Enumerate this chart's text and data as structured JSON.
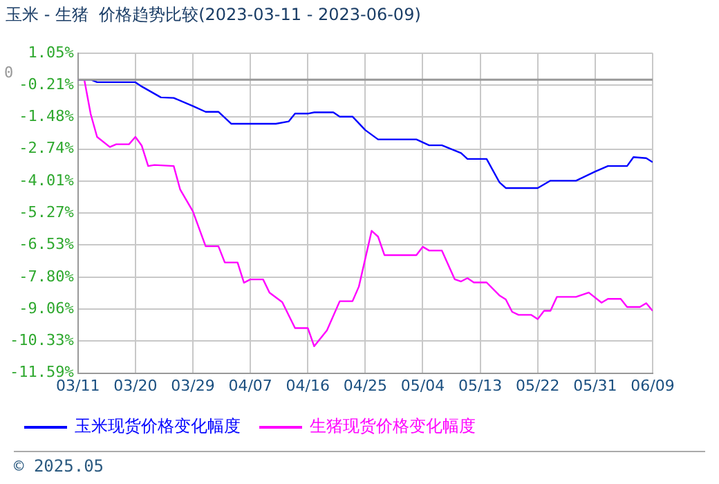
{
  "chart_data": {
    "type": "line",
    "title": "玉米 - 生猪  价格趋势比较(2023-03-11 - 2023-06-09)",
    "xlim": [
      "--03-11",
      "--06-09"
    ],
    "xticks": [
      {
        "value": "--03-11",
        "label": "03/11"
      },
      {
        "value": "--03-20",
        "label": "03/20"
      },
      {
        "value": "--03-29",
        "label": "03/29"
      },
      {
        "value": "--04-07",
        "label": "04/07"
      },
      {
        "value": "--04-16",
        "label": "04/16"
      },
      {
        "value": "--04-25",
        "label": "04/25"
      },
      {
        "value": "--05-04",
        "label": "05/04"
      },
      {
        "value": "--05-13",
        "label": "05/13"
      },
      {
        "value": "--05-22",
        "label": "05/22"
      },
      {
        "value": "--05-31",
        "label": "05/31"
      },
      {
        "value": "--06-09",
        "label": "06/09"
      }
    ],
    "ylim": [
      -11.59,
      1.05
    ],
    "yticks": [
      {
        "value": 1.05,
        "label": "1.05%"
      },
      {
        "value": -0.21,
        "label": "-0.21%"
      },
      {
        "value": -1.48,
        "label": "-1.48%"
      },
      {
        "value": -2.74,
        "label": "-2.74%"
      },
      {
        "value": -4.01,
        "label": "-4.01%"
      },
      {
        "value": -5.27,
        "label": "-5.27%"
      },
      {
        "value": -6.53,
        "label": "-6.53%"
      },
      {
        "value": -7.8,
        "label": "-7.80%"
      },
      {
        "value": -9.06,
        "label": "-9.06%"
      },
      {
        "value": -10.33,
        "label": "-10.33%"
      },
      {
        "value": -11.59,
        "label": "-11.59%"
      }
    ],
    "grid": true,
    "legend": "bottom",
    "marker": "none",
    "line_style": "solid",
    "ref_lines": [
      {
        "axis": "y",
        "value": 0,
        "label": "0",
        "color": "#999999"
      }
    ],
    "annotations": [
      "© 2025.05"
    ],
    "series": [
      {
        "name": "玉米现货价格变化幅度",
        "color": "#0000ff",
        "x": [
          "--03-11",
          "--03-13",
          "--03-14",
          "--03-20",
          "--03-21",
          "--03-24",
          "--03-26",
          "--03-29",
          "--03-31",
          "--04-02",
          "--04-04",
          "--04-11",
          "--04-13",
          "--04-14",
          "--04-16",
          "--04-17",
          "--04-20",
          "--04-21",
          "--04-23",
          "--04-25",
          "--04-27",
          "--05-03",
          "--05-05",
          "--05-07",
          "--05-10",
          "--05-11",
          "--05-14",
          "--05-16",
          "--05-17",
          "--05-22",
          "--05-24",
          "--05-28",
          "--05-31",
          "--06-02",
          "--06-05",
          "--06-06",
          "--06-08",
          "--06-09"
        ],
        "values": [
          0,
          0,
          -0.1,
          -0.1,
          -0.27,
          -0.7,
          -0.72,
          -1.04,
          -1.27,
          -1.27,
          -1.74,
          -1.74,
          -1.65,
          -1.34,
          -1.34,
          -1.29,
          -1.29,
          -1.46,
          -1.46,
          -1.99,
          -2.36,
          -2.36,
          -2.59,
          -2.59,
          -2.9,
          -3.13,
          -3.13,
          -4.05,
          -4.28,
          -4.28,
          -3.99,
          -3.99,
          -3.63,
          -3.41,
          -3.41,
          -3.06,
          -3.1,
          -3.26
        ]
      },
      {
        "name": "生猪现货价格变化幅度",
        "color": "#ff00ff",
        "x": [
          "--03-11",
          "--03-12",
          "--03-13",
          "--03-14",
          "--03-16",
          "--03-17",
          "--03-19",
          "--03-20",
          "--03-21",
          "--03-22",
          "--03-23",
          "--03-26",
          "--03-27",
          "--03-29",
          "--03-31",
          "--04-02",
          "--04-03",
          "--04-05",
          "--04-06",
          "--04-07",
          "--04-09",
          "--04-10",
          "--04-12",
          "--04-14",
          "--04-16",
          "--04-17",
          "--04-19",
          "--04-21",
          "--04-23",
          "--04-24",
          "--04-26",
          "--04-27",
          "--04-28",
          "--05-03",
          "--05-04",
          "--05-05",
          "--05-07",
          "--05-09",
          "--05-10",
          "--05-11",
          "--05-12",
          "--05-14",
          "--05-16",
          "--05-17",
          "--05-18",
          "--05-19",
          "--05-21",
          "--05-22",
          "--05-23",
          "--05-24",
          "--05-25",
          "--05-28",
          "--05-30",
          "--06-01",
          "--06-02",
          "--06-04",
          "--06-05",
          "--06-07",
          "--06-08",
          "--06-09"
        ],
        "values": [
          0,
          0,
          -1.36,
          -2.26,
          -2.66,
          -2.55,
          -2.55,
          -2.26,
          -2.61,
          -3.41,
          -3.37,
          -3.41,
          -4.33,
          -5.2,
          -6.58,
          -6.58,
          -7.22,
          -7.22,
          -8.02,
          -7.89,
          -7.89,
          -8.41,
          -8.79,
          -9.81,
          -9.81,
          -10.53,
          -9.9,
          -8.75,
          -8.75,
          -8.17,
          -5.97,
          -6.2,
          -6.93,
          -6.93,
          -6.6,
          -6.75,
          -6.75,
          -7.88,
          -7.97,
          -7.84,
          -8.01,
          -8.01,
          -8.52,
          -8.68,
          -9.17,
          -9.29,
          -9.29,
          -9.46,
          -9.13,
          -9.13,
          -8.58,
          -8.58,
          -8.41,
          -8.81,
          -8.66,
          -8.66,
          -8.98,
          -8.98,
          -8.83,
          -9.13
        ]
      }
    ]
  }
}
